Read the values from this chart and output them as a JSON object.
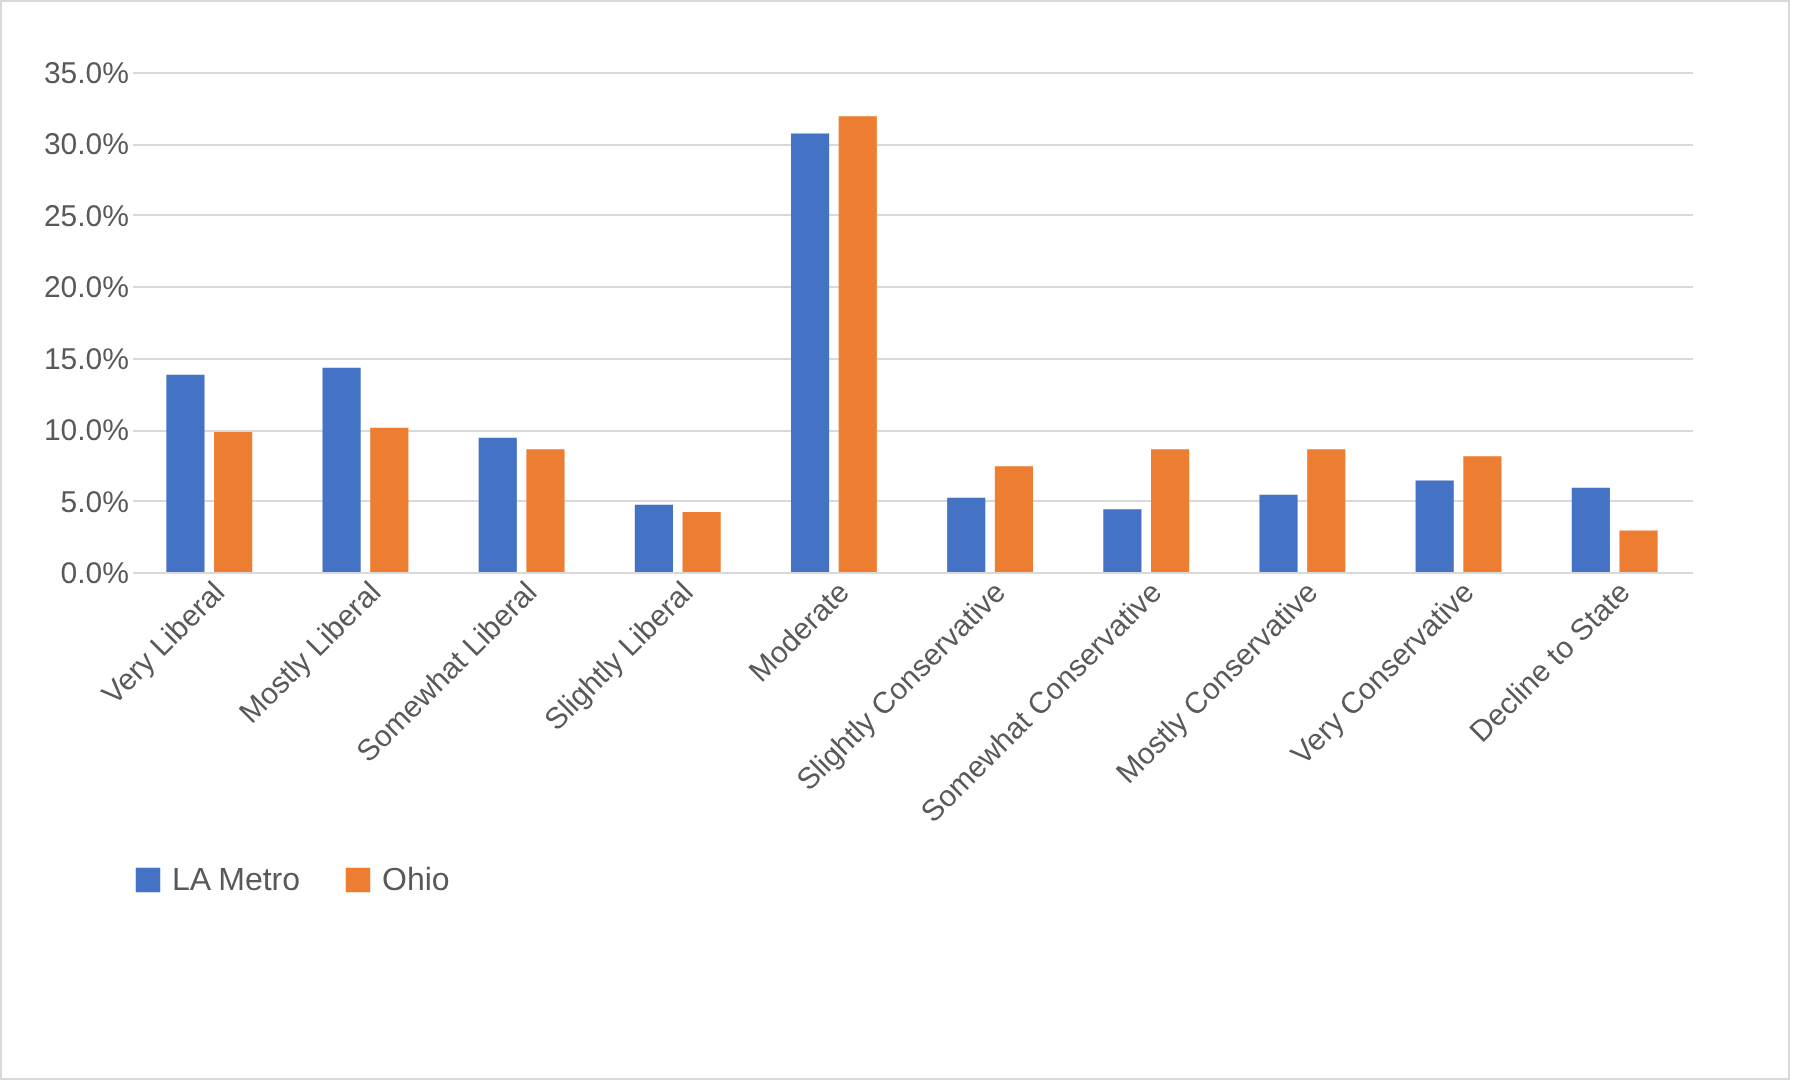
{
  "chart_data": {
    "type": "bar",
    "categories": [
      "Very Liberal",
      "Mostly Liberal",
      "Somewhat Liberal",
      "Slightly Liberal",
      "Moderate",
      "Slightly Conservative",
      "Somewhat Conservative",
      "Mostly Conservative",
      "Very Conservative",
      "Decline to State"
    ],
    "series": [
      {
        "name": "LA Metro",
        "color": "#4472c4",
        "values": [
          13.8,
          14.3,
          9.4,
          4.7,
          30.7,
          5.2,
          4.4,
          5.4,
          6.4,
          5.9
        ]
      },
      {
        "name": "Ohio",
        "color": "#ed7d31",
        "values": [
          9.8,
          10.1,
          8.6,
          4.2,
          31.9,
          7.4,
          8.6,
          8.6,
          8.1,
          2.9
        ]
      }
    ],
    "ylim": [
      0,
      35
    ],
    "yticks": [
      {
        "value": 0,
        "label": "0.0%"
      },
      {
        "value": 5,
        "label": "5.0%"
      },
      {
        "value": 10,
        "label": "10.0%"
      },
      {
        "value": 15,
        "label": "15.0%"
      },
      {
        "value": 20,
        "label": "20.0%"
      },
      {
        "value": 25,
        "label": "25.0%"
      },
      {
        "value": 30,
        "label": "30.0%"
      },
      {
        "value": 35,
        "label": "35.0%"
      }
    ],
    "grid": "y",
    "legend": "bottom"
  }
}
